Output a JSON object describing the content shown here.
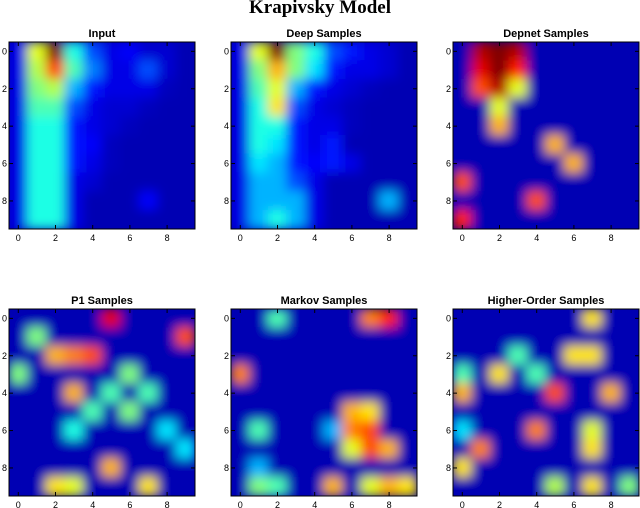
{
  "chart_data": {
    "type": "heatmap",
    "title": "Krapivsky Model",
    "colormap": "jet",
    "grid_size": [
      10,
      10
    ],
    "interpolation": "bicubic",
    "xticks": [
      "0",
      "2",
      "4",
      "6",
      "8"
    ],
    "yticks": [
      "0",
      "2",
      "4",
      "6",
      "8"
    ],
    "panels": [
      {
        "title": "Input",
        "values": [
          [
            0.1,
            0.6,
            1.0,
            0.4,
            0.2,
            0.1,
            0.12,
            0.08,
            0.08,
            0.05
          ],
          [
            0.1,
            0.55,
            0.8,
            0.45,
            0.25,
            0.1,
            0.1,
            0.2,
            0.08,
            0.05
          ],
          [
            0.1,
            0.5,
            0.55,
            0.3,
            0.15,
            0.1,
            0.1,
            0.1,
            0.06,
            0.05
          ],
          [
            0.1,
            0.45,
            0.45,
            0.2,
            0.1,
            0.08,
            0.08,
            0.06,
            0.05,
            0.05
          ],
          [
            0.1,
            0.4,
            0.4,
            0.15,
            0.1,
            0.08,
            0.06,
            0.05,
            0.05,
            0.05
          ],
          [
            0.1,
            0.4,
            0.4,
            0.15,
            0.12,
            0.06,
            0.05,
            0.05,
            0.05,
            0.05
          ],
          [
            0.1,
            0.4,
            0.4,
            0.15,
            0.1,
            0.06,
            0.05,
            0.05,
            0.05,
            0.05
          ],
          [
            0.1,
            0.4,
            0.4,
            0.1,
            0.08,
            0.05,
            0.05,
            0.05,
            0.05,
            0.05
          ],
          [
            0.1,
            0.4,
            0.4,
            0.1,
            0.05,
            0.05,
            0.05,
            0.12,
            0.05,
            0.05
          ],
          [
            0.1,
            0.4,
            0.4,
            0.1,
            0.05,
            0.05,
            0.05,
            0.05,
            0.05,
            0.05
          ]
        ]
      },
      {
        "title": "Deep Samples",
        "values": [
          [
            0.1,
            0.6,
            1.0,
            0.5,
            0.4,
            0.2,
            0.15,
            0.1,
            0.08,
            0.05
          ],
          [
            0.1,
            0.5,
            0.7,
            0.5,
            0.35,
            0.15,
            0.1,
            0.1,
            0.08,
            0.05
          ],
          [
            0.1,
            0.45,
            0.6,
            0.3,
            0.15,
            0.1,
            0.08,
            0.06,
            0.05,
            0.05
          ],
          [
            0.1,
            0.4,
            0.65,
            0.2,
            0.1,
            0.08,
            0.06,
            0.05,
            0.05,
            0.05
          ],
          [
            0.1,
            0.4,
            0.4,
            0.15,
            0.1,
            0.1,
            0.06,
            0.05,
            0.05,
            0.05
          ],
          [
            0.1,
            0.4,
            0.35,
            0.15,
            0.1,
            0.15,
            0.05,
            0.05,
            0.05,
            0.05
          ],
          [
            0.1,
            0.35,
            0.3,
            0.15,
            0.12,
            0.15,
            0.1,
            0.05,
            0.05,
            0.05
          ],
          [
            0.1,
            0.3,
            0.3,
            0.2,
            0.1,
            0.05,
            0.05,
            0.05,
            0.05,
            0.05
          ],
          [
            0.1,
            0.3,
            0.3,
            0.3,
            0.1,
            0.05,
            0.05,
            0.05,
            0.3,
            0.05
          ],
          [
            0.1,
            0.3,
            0.4,
            0.3,
            0.1,
            0.05,
            0.05,
            0.05,
            0.05,
            0.05
          ]
        ]
      },
      {
        "title": "Depnet Samples",
        "values": [
          [
            0.05,
            0.95,
            1.0,
            0.95,
            0.05,
            0.05,
            0.05,
            0.05,
            0.05,
            0.05
          ],
          [
            0.05,
            0.9,
            1.0,
            0.85,
            0.05,
            0.05,
            0.05,
            0.05,
            0.05,
            0.05
          ],
          [
            0.05,
            0.8,
            0.95,
            0.6,
            0.05,
            0.05,
            0.05,
            0.05,
            0.05,
            0.05
          ],
          [
            0.05,
            0.05,
            0.6,
            0.05,
            0.05,
            0.05,
            0.05,
            0.05,
            0.05,
            0.05
          ],
          [
            0.05,
            0.05,
            0.7,
            0.05,
            0.05,
            0.05,
            0.05,
            0.05,
            0.05,
            0.05
          ],
          [
            0.05,
            0.05,
            0.05,
            0.05,
            0.05,
            0.7,
            0.05,
            0.05,
            0.05,
            0.05
          ],
          [
            0.05,
            0.05,
            0.05,
            0.05,
            0.05,
            0.05,
            0.7,
            0.05,
            0.05,
            0.05
          ],
          [
            0.8,
            0.05,
            0.05,
            0.05,
            0.05,
            0.05,
            0.05,
            0.05,
            0.05,
            0.05
          ],
          [
            0.05,
            0.05,
            0.05,
            0.05,
            0.8,
            0.05,
            0.05,
            0.05,
            0.05,
            0.05
          ],
          [
            0.85,
            0.05,
            0.05,
            0.05,
            0.05,
            0.05,
            0.05,
            0.05,
            0.05,
            0.05
          ]
        ]
      },
      {
        "title": "P1 Samples",
        "values": [
          [
            0.05,
            0.05,
            0.05,
            0.05,
            0.05,
            0.9,
            0.05,
            0.05,
            0.05,
            0.05
          ],
          [
            0.05,
            0.5,
            0.05,
            0.05,
            0.05,
            0.05,
            0.05,
            0.05,
            0.05,
            0.8
          ],
          [
            0.05,
            0.05,
            0.7,
            0.75,
            0.8,
            0.05,
            0.05,
            0.05,
            0.05,
            0.05
          ],
          [
            0.5,
            0.05,
            0.05,
            0.05,
            0.05,
            0.05,
            0.5,
            0.05,
            0.05,
            0.05
          ],
          [
            0.05,
            0.05,
            0.05,
            0.7,
            0.05,
            0.45,
            0.05,
            0.45,
            0.05,
            0.05
          ],
          [
            0.05,
            0.05,
            0.05,
            0.05,
            0.45,
            0.05,
            0.5,
            0.05,
            0.05,
            0.05
          ],
          [
            0.05,
            0.05,
            0.05,
            0.4,
            0.05,
            0.05,
            0.05,
            0.05,
            0.35,
            0.05
          ],
          [
            0.05,
            0.05,
            0.05,
            0.05,
            0.05,
            0.05,
            0.05,
            0.05,
            0.05,
            0.35
          ],
          [
            0.05,
            0.05,
            0.05,
            0.05,
            0.05,
            0.7,
            0.05,
            0.05,
            0.05,
            0.05
          ],
          [
            0.05,
            0.05,
            0.65,
            0.6,
            0.05,
            0.05,
            0.05,
            0.65,
            0.05,
            0.05
          ]
        ]
      },
      {
        "title": "Markov Samples",
        "values": [
          [
            0.05,
            0.05,
            0.45,
            0.05,
            0.05,
            0.05,
            0.05,
            0.75,
            0.85,
            0.05
          ],
          [
            0.05,
            0.05,
            0.05,
            0.05,
            0.05,
            0.05,
            0.05,
            0.05,
            0.05,
            0.05
          ],
          [
            0.05,
            0.05,
            0.05,
            0.05,
            0.05,
            0.05,
            0.05,
            0.05,
            0.05,
            0.05
          ],
          [
            0.75,
            0.05,
            0.05,
            0.05,
            0.05,
            0.05,
            0.05,
            0.05,
            0.05,
            0.05
          ],
          [
            0.05,
            0.05,
            0.05,
            0.05,
            0.05,
            0.05,
            0.05,
            0.05,
            0.05,
            0.05
          ],
          [
            0.05,
            0.05,
            0.05,
            0.05,
            0.05,
            0.05,
            0.7,
            0.65,
            0.05,
            0.05
          ],
          [
            0.05,
            0.45,
            0.05,
            0.05,
            0.05,
            0.3,
            0.75,
            0.8,
            0.05,
            0.05
          ],
          [
            0.05,
            0.05,
            0.05,
            0.05,
            0.05,
            0.05,
            0.6,
            0.8,
            0.7,
            0.05
          ],
          [
            0.05,
            0.3,
            0.05,
            0.05,
            0.05,
            0.05,
            0.05,
            0.05,
            0.05,
            0.05
          ],
          [
            0.05,
            0.5,
            0.45,
            0.05,
            0.05,
            0.7,
            0.05,
            0.6,
            0.7,
            0.65
          ]
        ]
      },
      {
        "title": "Higher-Order Samples",
        "values": [
          [
            0.05,
            0.05,
            0.05,
            0.05,
            0.05,
            0.05,
            0.05,
            0.65,
            0.05,
            0.05
          ],
          [
            0.05,
            0.05,
            0.05,
            0.05,
            0.05,
            0.05,
            0.05,
            0.05,
            0.05,
            0.05
          ],
          [
            0.05,
            0.05,
            0.05,
            0.45,
            0.05,
            0.05,
            0.65,
            0.65,
            0.05,
            0.05
          ],
          [
            0.45,
            0.05,
            0.65,
            0.05,
            0.45,
            0.05,
            0.05,
            0.05,
            0.05,
            0.05
          ],
          [
            0.7,
            0.05,
            0.05,
            0.05,
            0.05,
            0.8,
            0.05,
            0.05,
            0.7,
            0.05
          ],
          [
            0.05,
            0.05,
            0.05,
            0.05,
            0.05,
            0.05,
            0.05,
            0.05,
            0.05,
            0.05
          ],
          [
            0.35,
            0.05,
            0.05,
            0.05,
            0.75,
            0.05,
            0.05,
            0.6,
            0.05,
            0.05
          ],
          [
            0.05,
            0.75,
            0.05,
            0.05,
            0.05,
            0.05,
            0.05,
            0.65,
            0.05,
            0.05
          ],
          [
            0.65,
            0.05,
            0.05,
            0.05,
            0.05,
            0.05,
            0.05,
            0.05,
            0.05,
            0.05
          ],
          [
            0.05,
            0.05,
            0.05,
            0.05,
            0.05,
            0.55,
            0.05,
            0.65,
            0.05,
            0.5
          ]
        ]
      }
    ]
  }
}
